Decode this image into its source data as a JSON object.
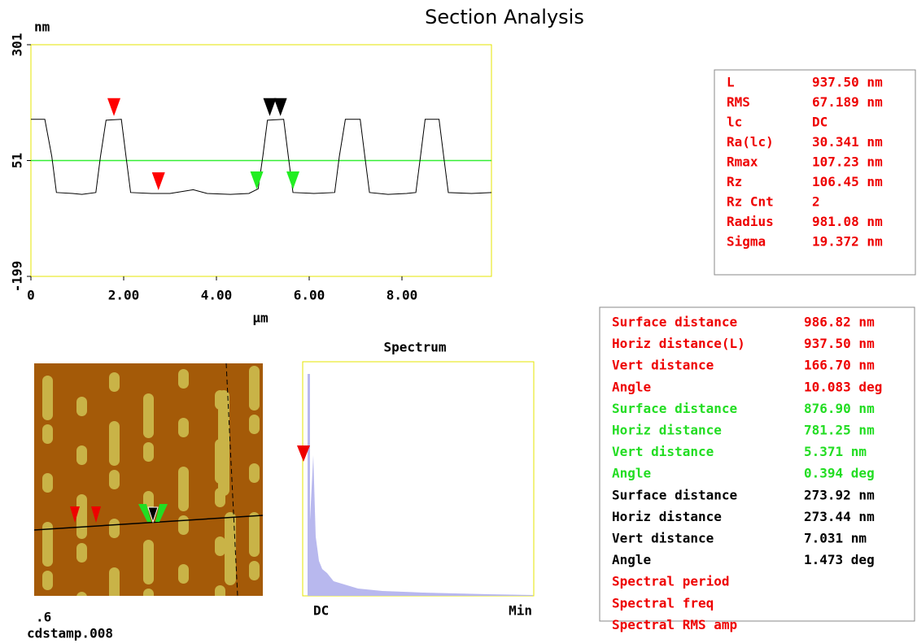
{
  "chart_data": {
    "type": "line",
    "title": "Section Analysis",
    "y_unit": "nm",
    "x_unit": "μm",
    "color": "#000000",
    "x": [
      0,
      0.3,
      0.45,
      0.55,
      0.9,
      1.1,
      1.4,
      1.5,
      1.62,
      1.95,
      2.05,
      2.15,
      2.6,
      3.0,
      3.5,
      3.8,
      4.3,
      4.7,
      4.9,
      5.0,
      5.1,
      5.45,
      5.55,
      5.65,
      6.1,
      6.55,
      6.65,
      6.78,
      7.1,
      7.2,
      7.3,
      7.7,
      8.1,
      8.3,
      8.4,
      8.5,
      8.8,
      8.9,
      9.0,
      9.5,
      9.93
    ],
    "values": [
      140,
      140,
      60,
      -18,
      -20,
      -22,
      -18,
      60,
      138,
      140,
      60,
      -18,
      -20,
      -20,
      -12,
      -20,
      -22,
      -20,
      -10,
      60,
      138,
      140,
      60,
      -18,
      -20,
      -18,
      60,
      140,
      140,
      60,
      -18,
      -22,
      -20,
      -18,
      60,
      140,
      140,
      60,
      -18,
      -20,
      -18
    ],
    "xlim": [
      0,
      9.93
    ],
    "ylim": [
      -199,
      301
    ],
    "xticks": [
      0,
      {
        "value": 2,
        "label": "2.00"
      },
      {
        "value": 4,
        "label": "4.00"
      },
      {
        "value": 6,
        "label": "6.00"
      },
      {
        "value": 8,
        "label": "8.00"
      }
    ],
    "yticks": [
      -199,
      51,
      301
    ],
    "reference_line": {
      "value": 51,
      "color": "#33ee33"
    },
    "cursors": [
      {
        "x": 1.79,
        "y": 140,
        "color": "#ff0000"
      },
      {
        "x": 2.75,
        "y": -20,
        "color": "#ff0000"
      },
      {
        "x": 5.15,
        "y": 140,
        "color": "#000000"
      },
      {
        "x": 5.38,
        "y": 140,
        "color": "#000000"
      },
      {
        "x": 4.87,
        "y": -18,
        "color": "#22ee22"
      },
      {
        "x": 5.65,
        "y": -18,
        "color": "#22ee22"
      }
    ]
  },
  "stats": {
    "color": "#ee0000",
    "rows": [
      [
        "L",
        "937.50 nm"
      ],
      [
        "RMS",
        "67.189 nm"
      ],
      [
        "lc",
        "DC"
      ],
      [
        "Ra(lc)",
        "30.341 nm"
      ],
      [
        "Rmax",
        "107.23 nm"
      ],
      [
        "Rz",
        "106.45 nm"
      ],
      [
        "Rz Cnt",
        "2"
      ],
      [
        "Radius",
        "981.08 nm"
      ],
      [
        "Sigma",
        "19.372 nm"
      ]
    ]
  },
  "measurements": [
    {
      "color": "#ee0000",
      "rows": [
        [
          "Surface distance",
          "986.82 nm"
        ],
        [
          "Horiz distance(L)",
          "937.50 nm"
        ],
        [
          "Vert distance",
          "166.70 nm"
        ],
        [
          "Angle",
          "10.083 deg"
        ]
      ]
    },
    {
      "color": "#22dd22",
      "rows": [
        [
          "Surface distance",
          "876.90 nm"
        ],
        [
          "Horiz distance",
          "781.25 nm"
        ],
        [
          "Vert distance",
          "5.371 nm"
        ],
        [
          "Angle",
          "0.394 deg"
        ]
      ]
    },
    {
      "color": "#000000",
      "rows": [
        [
          "Surface distance",
          "273.92 nm"
        ],
        [
          "Horiz distance",
          "273.44 nm"
        ],
        [
          "Vert distance",
          "7.031 nm"
        ],
        [
          "Angle",
          "1.473 deg"
        ]
      ]
    },
    {
      "color": "#ee0000",
      "rows": [
        [
          "Spectral period"
        ],
        [
          "Spectral freq"
        ],
        [
          "Spectral RMS amp"
        ]
      ]
    }
  ],
  "image": {
    "scale": ".6",
    "filename": "cdstamp.008"
  },
  "spectrum": {
    "title": "Spectrum",
    "left_label": "DC",
    "right_label": "Min"
  }
}
